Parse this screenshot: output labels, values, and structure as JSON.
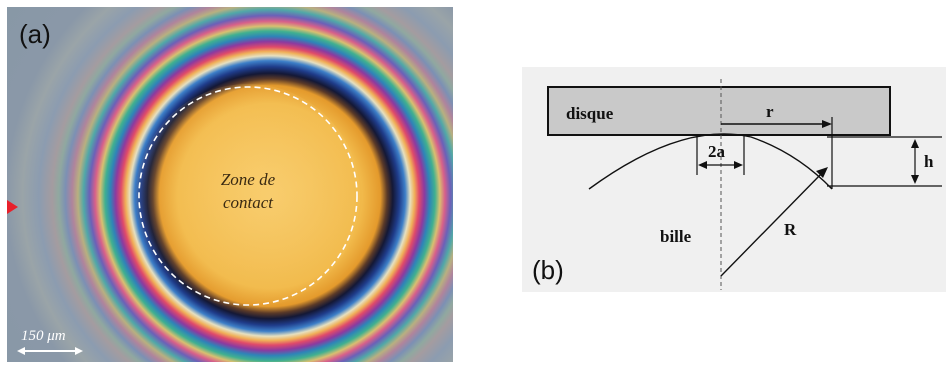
{
  "panel_a": {
    "label": "(a)",
    "zone_line1": "Zone de",
    "zone_line2": "contact",
    "scale_bar": "150 μm"
  },
  "panel_b": {
    "label": "(b)",
    "disk_label": "disque",
    "ball_label": "bille",
    "r_label": "r",
    "h_label": "h",
    "two_a_label": "2a",
    "big_r_label": "R"
  },
  "colors": {
    "background": "#8a99a6",
    "contact": "#f4c160",
    "ring_dark": "#181838",
    "disk_fill": "#c8c8c8"
  }
}
